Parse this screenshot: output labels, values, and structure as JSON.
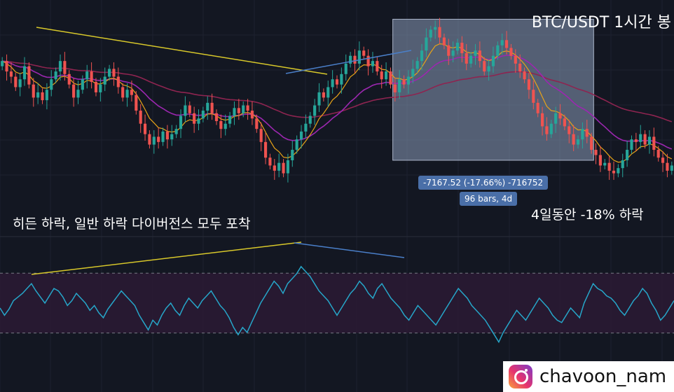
{
  "header": {
    "title": "BTC/USDT 1시간 봉"
  },
  "notes": {
    "left": "히든 하락, 일반 하락 다이버전스 모두 포착",
    "right": "4일동안 -18% 하락"
  },
  "measure": {
    "summary": "-7167.52 (-17.66%) -716752",
    "bars": "96 bars, 4d",
    "change_pct": -17.66,
    "change_abs": -7167.52,
    "bar_count": 96,
    "duration_days": 4
  },
  "watermark": {
    "handle": "chavoon_nam"
  },
  "colors": {
    "background": "#131722",
    "up": "#26a69a",
    "down": "#ef5350",
    "ema_short": "#e8a317",
    "ema_mid": "#9c27b0",
    "ema_long": "#8e2450",
    "rsi": "#26a6c9",
    "rsi_band": "#2a1a33",
    "trend_yellow": "#d8c82a",
    "trend_blue": "#4a7fc9",
    "measure_fill": "#8a9bb8"
  },
  "chart_data": [
    {
      "type": "candlestick",
      "series": [
        {
          "name": "candles",
          "close": [
            64,
            60,
            58,
            54,
            57,
            62,
            55,
            50,
            52,
            49,
            53,
            57,
            60,
            64,
            59,
            55,
            50,
            53,
            57,
            60,
            56,
            52,
            55,
            58,
            61,
            58,
            54,
            50,
            53,
            51,
            45,
            40,
            36,
            32,
            35,
            33,
            37,
            34,
            36,
            38,
            43,
            47,
            44,
            40,
            42,
            45,
            48,
            44,
            41,
            38,
            40,
            43,
            46,
            44,
            47,
            45,
            42,
            38,
            33,
            27,
            24,
            22,
            25,
            21,
            26,
            30,
            34,
            37,
            40,
            43,
            47,
            52,
            50,
            54,
            57,
            55,
            59,
            63,
            66,
            63,
            68,
            66,
            62,
            64,
            60,
            57,
            60,
            55,
            52,
            57,
            55,
            58,
            61,
            64,
            68,
            73,
            76,
            77,
            73,
            70,
            66,
            68,
            71,
            67,
            63,
            66,
            68,
            64,
            60,
            62,
            66,
            70,
            72,
            69,
            66,
            63,
            60,
            57,
            53,
            48,
            44,
            39,
            36,
            40,
            44,
            42,
            39,
            36,
            32,
            34,
            38,
            35,
            30,
            28,
            24,
            25,
            22,
            21,
            23,
            26,
            30,
            34,
            33,
            36,
            32,
            35,
            30,
            27,
            25,
            22,
            24
          ]
        },
        {
          "name": "ema_short"
        },
        {
          "name": "ema_mid"
        },
        {
          "name": "ema_long"
        }
      ]
    },
    {
      "type": "line",
      "series": [
        {
          "name": "rsi",
          "values": [
            46,
            40,
            45,
            52,
            55,
            58,
            62,
            66,
            60,
            55,
            50,
            56,
            62,
            60,
            55,
            48,
            52,
            58,
            54,
            50,
            44,
            48,
            42,
            38,
            45,
            50,
            55,
            60,
            56,
            52,
            48,
            40,
            34,
            28,
            36,
            32,
            40,
            46,
            50,
            44,
            40,
            48,
            54,
            50,
            46,
            52,
            56,
            60,
            54,
            48,
            44,
            38,
            30,
            24,
            30,
            26,
            34,
            42,
            50,
            56,
            62,
            68,
            64,
            58,
            66,
            70,
            74,
            80,
            76,
            72,
            66,
            60,
            56,
            52,
            46,
            40,
            46,
            52,
            58,
            62,
            68,
            64,
            58,
            54,
            62,
            66,
            60,
            54,
            50,
            46,
            40,
            36,
            42,
            48,
            44,
            40,
            36,
            32,
            38,
            44,
            50,
            56,
            62,
            58,
            54,
            48,
            44,
            40,
            36,
            30,
            24,
            18,
            26,
            32,
            38,
            44,
            40,
            36,
            42,
            48,
            54,
            50,
            46,
            40,
            36,
            34,
            40,
            46,
            42,
            38,
            50,
            58,
            66,
            62,
            60,
            56,
            54,
            50,
            44,
            40,
            46,
            52,
            56,
            62,
            58,
            50,
            44,
            36,
            40,
            46,
            52
          ]
        },
        {
          "name": "rsi_upper"
        },
        {
          "name": "rsi_lower"
        }
      ]
    }
  ]
}
